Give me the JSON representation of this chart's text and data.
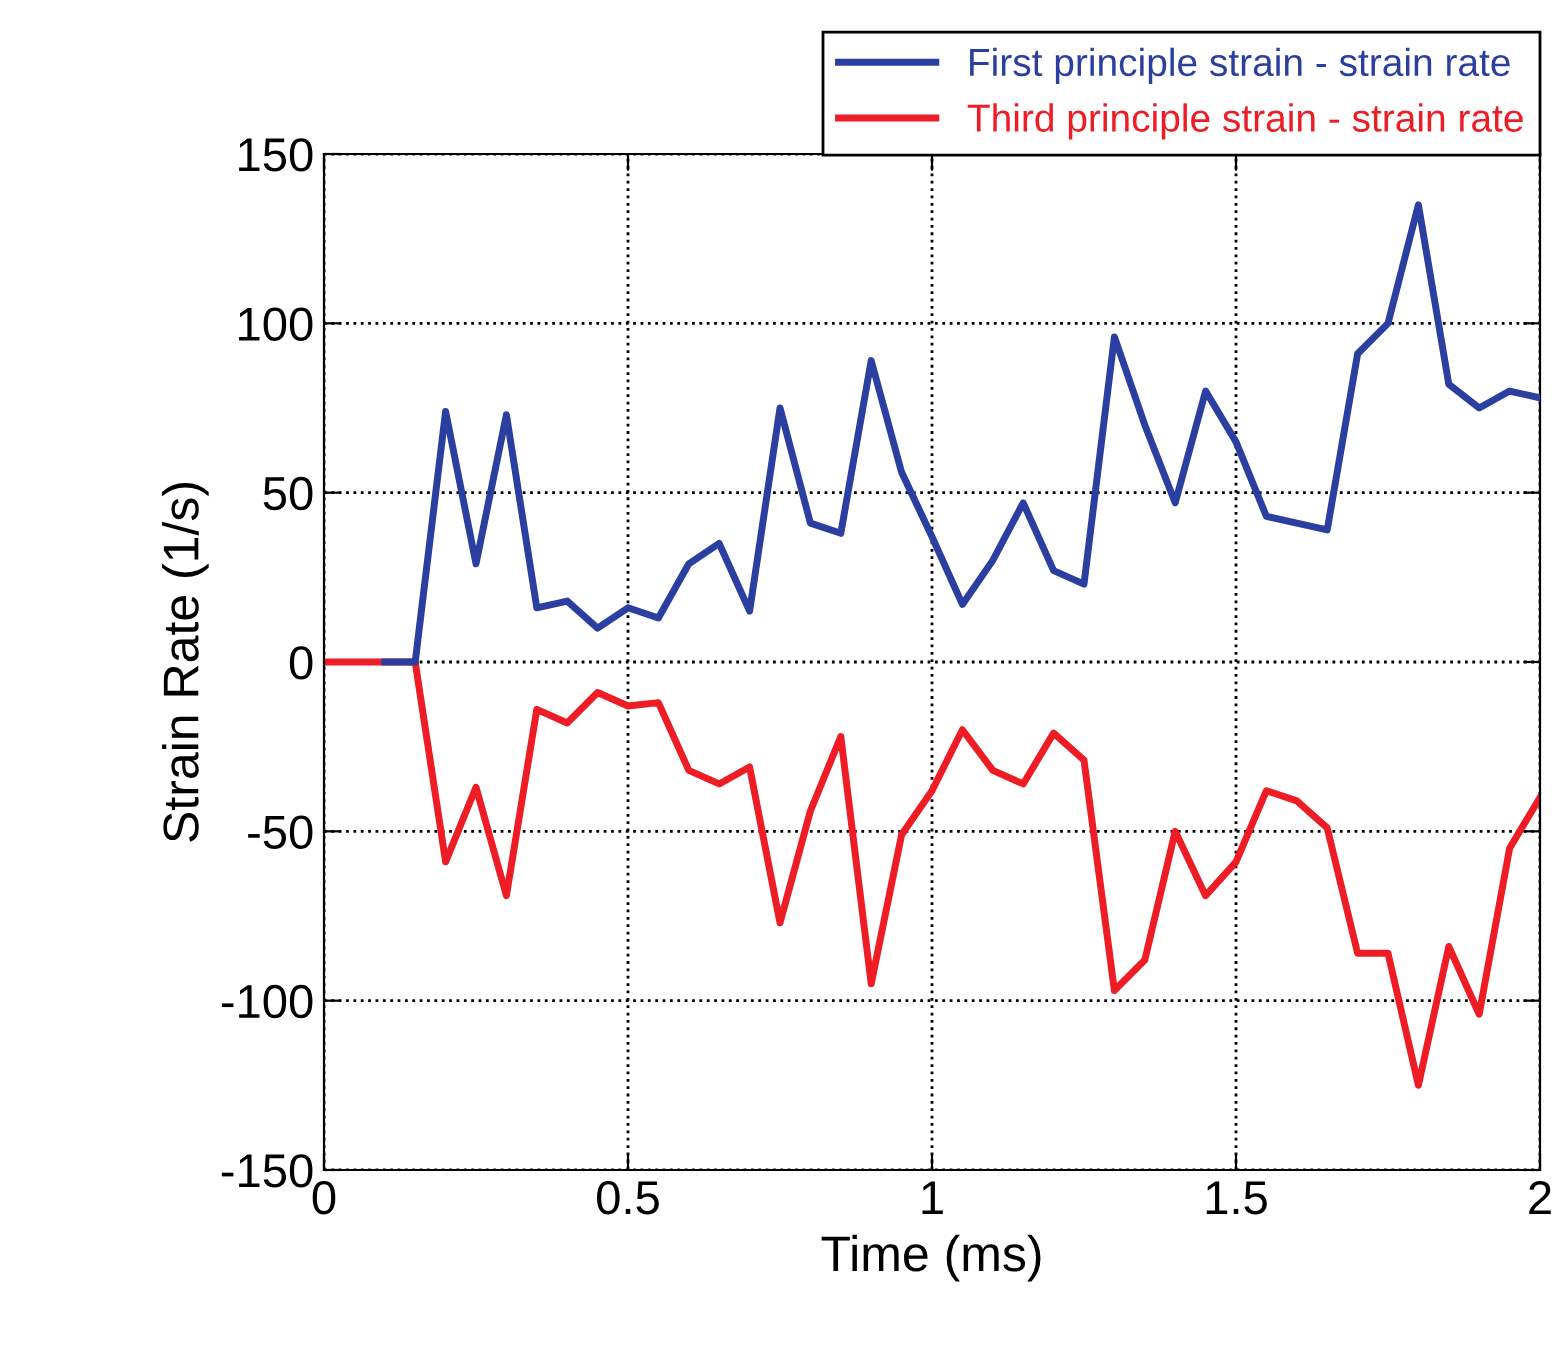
{
  "chart_data": {
    "type": "line",
    "xlabel": "Time (ms)",
    "ylabel": "Strain Rate (1/s)",
    "x": [
      0,
      0.05,
      0.1,
      0.15,
      0.2,
      0.25,
      0.3,
      0.35,
      0.4,
      0.45,
      0.5,
      0.55,
      0.6,
      0.65,
      0.7,
      0.75,
      0.8,
      0.85,
      0.9,
      0.95,
      1.0,
      1.05,
      1.1,
      1.15,
      1.2,
      1.25,
      1.3,
      1.35,
      1.4,
      1.45,
      1.5,
      1.55,
      1.6,
      1.65,
      1.7,
      1.75,
      1.8,
      1.85,
      1.9,
      1.95,
      2.0
    ],
    "series": [
      {
        "name": "First principle strain - strain rate",
        "color": "#2b3fa0",
        "values": [
          null,
          null,
          0,
          0,
          74,
          29,
          73,
          16,
          18,
          10,
          16,
          13,
          29,
          35,
          15,
          75,
          41,
          38,
          89,
          56,
          37,
          17,
          30,
          47,
          27,
          23,
          96,
          70,
          47,
          80,
          65,
          43,
          41,
          39,
          91,
          100,
          135,
          82,
          75,
          80,
          78
        ]
      },
      {
        "name": "Third principle strain - strain rate",
        "color": "#ee1c24",
        "values": [
          0,
          0,
          0,
          0,
          -59,
          -37,
          -69,
          -14,
          -18,
          -9,
          -13,
          -12,
          -32,
          -36,
          -31,
          -77,
          -44,
          -22,
          -95,
          -51,
          -38,
          -20,
          -32,
          -36,
          -21,
          -29,
          -97,
          -88,
          -50,
          -69,
          -59,
          -38,
          -41,
          -49,
          -86,
          -86,
          -125,
          -84,
          -104,
          -55,
          -40
        ]
      }
    ],
    "xlim": [
      0,
      2
    ],
    "xticks": [
      0,
      0.5,
      1,
      1.5,
      2
    ],
    "ylim": [
      -150,
      150
    ],
    "yticks": [
      -150,
      -100,
      -50,
      0,
      50,
      100,
      150
    ],
    "grid": true,
    "legend": "top right",
    "marker": "none",
    "line_style": "solid"
  }
}
